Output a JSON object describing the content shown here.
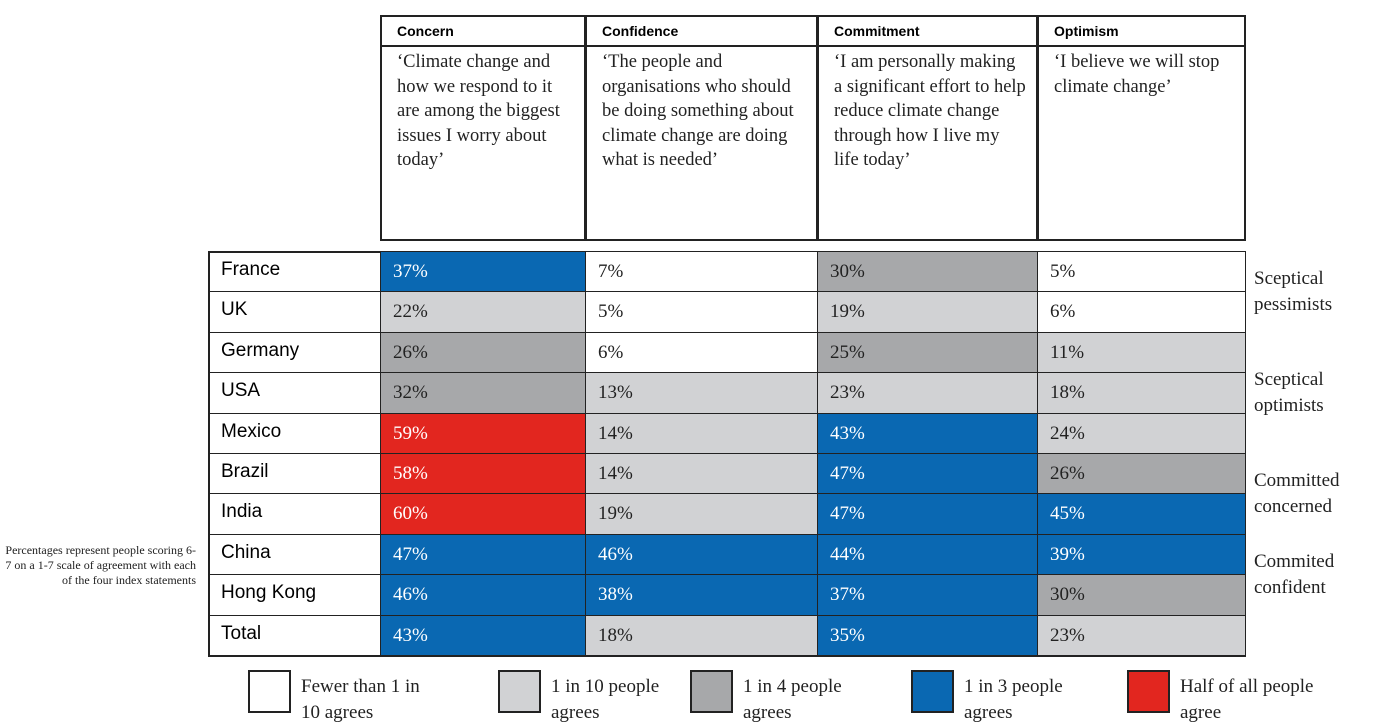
{
  "columns": [
    {
      "label": "Concern",
      "statement": "‘Climate change and how we respond to it are among the biggest issues I worry about today’"
    },
    {
      "label": "Confidence",
      "statement": "‘The people and organisations who should be doing something about climate change are doing what is needed’"
    },
    {
      "label": "Commitment",
      "statement": "‘I am personally making a significant effort to help reduce climate change through how I live my life today’"
    },
    {
      "label": "Optimism",
      "statement": "‘I believe we will stop climate change’"
    }
  ],
  "rows": [
    {
      "country": "France",
      "cells": [
        {
          "text": "37%",
          "color": "#0a68b2"
        },
        {
          "text": "7%",
          "color": "#ffffff"
        },
        {
          "text": "30%",
          "color": "#a7a8aa"
        },
        {
          "text": "5%",
          "color": "#ffffff"
        }
      ]
    },
    {
      "country": "UK",
      "cells": [
        {
          "text": "22%",
          "color": "#d1d2d4"
        },
        {
          "text": "5%",
          "color": "#ffffff"
        },
        {
          "text": "19%",
          "color": "#d1d2d4"
        },
        {
          "text": "6%",
          "color": "#ffffff"
        }
      ]
    },
    {
      "country": "Germany",
      "cells": [
        {
          "text": "26%",
          "color": "#a7a8aa"
        },
        {
          "text": "6%",
          "color": "#ffffff"
        },
        {
          "text": "25%",
          "color": "#a7a8aa"
        },
        {
          "text": "11%",
          "color": "#d1d2d4"
        }
      ]
    },
    {
      "country": "USA",
      "cells": [
        {
          "text": "32%",
          "color": "#a7a8aa"
        },
        {
          "text": "13%",
          "color": "#d1d2d4"
        },
        {
          "text": "23%",
          "color": "#d1d2d4"
        },
        {
          "text": "18%",
          "color": "#d1d2d4"
        }
      ]
    },
    {
      "country": "Mexico",
      "cells": [
        {
          "text": "59%",
          "color": "#e2261f"
        },
        {
          "text": "14%",
          "color": "#d1d2d4"
        },
        {
          "text": "43%",
          "color": "#0a68b2"
        },
        {
          "text": "24%",
          "color": "#d1d2d4"
        }
      ]
    },
    {
      "country": "Brazil",
      "cells": [
        {
          "text": "58%",
          "color": "#e2261f"
        },
        {
          "text": "14%",
          "color": "#d1d2d4"
        },
        {
          "text": "47%",
          "color": "#0a68b2"
        },
        {
          "text": "26%",
          "color": "#a7a8aa"
        }
      ]
    },
    {
      "country": "India",
      "cells": [
        {
          "text": "60%",
          "color": "#e2261f"
        },
        {
          "text": "19%",
          "color": "#d1d2d4"
        },
        {
          "text": "47%",
          "color": "#0a68b2"
        },
        {
          "text": "45%",
          "color": "#0a68b2"
        }
      ]
    },
    {
      "country": "China",
      "cells": [
        {
          "text": "47%",
          "color": "#0a68b2"
        },
        {
          "text": "46%",
          "color": "#0a68b2"
        },
        {
          "text": "44%",
          "color": "#0a68b2"
        },
        {
          "text": "39%",
          "color": "#0a68b2"
        }
      ]
    },
    {
      "country": "Hong Kong",
      "cells": [
        {
          "text": "46%",
          "color": "#0a68b2"
        },
        {
          "text": "38%",
          "color": "#0a68b2"
        },
        {
          "text": "37%",
          "color": "#0a68b2"
        },
        {
          "text": "30%",
          "color": "#a7a8aa"
        }
      ]
    },
    {
      "country": "Total",
      "cells": [
        {
          "text": "43%",
          "color": "#0a68b2"
        },
        {
          "text": "18%",
          "color": "#d1d2d4"
        },
        {
          "text": "35%",
          "color": "#0a68b2"
        },
        {
          "text": "23%",
          "color": "#d1d2d4"
        }
      ]
    }
  ],
  "groups": [
    {
      "label": "Sceptical pessimists",
      "first": 0,
      "last": 1
    },
    {
      "label": "Sceptical optimists",
      "first": 2,
      "last": 4
    },
    {
      "label": "Committed concerned",
      "first": 5,
      "last": 6
    },
    {
      "label": "Commited confident",
      "first": 7,
      "last": 8
    }
  ],
  "note": "Percentages represent people scoring 6-7 on a 1-7 scale of agreement with each of the four index statements",
  "legend": [
    {
      "label": "Fewer than 1 in 10 agrees",
      "color": "#ffffff"
    },
    {
      "label": "1 in 10 people agrees",
      "color": "#d1d2d4"
    },
    {
      "label": "1 in 4 people agrees",
      "color": "#a7a8aa"
    },
    {
      "label": "1 in 3 people agrees",
      "color": "#0a68b2"
    },
    {
      "label": "Half of all people agree",
      "color": "#e2261f"
    }
  ]
}
